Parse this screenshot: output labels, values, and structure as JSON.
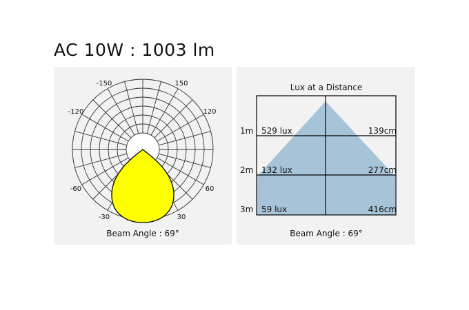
{
  "title": "AC 10W : 1003 lm",
  "polar": {
    "angle_labels": [
      {
        "text": "-150",
        "angle": -150
      },
      {
        "text": "150",
        "angle": 150
      },
      {
        "text": "-120",
        "angle": -120
      },
      {
        "text": "120",
        "angle": 120
      },
      {
        "text": "-60",
        "angle": -60
      },
      {
        "text": "60",
        "angle": 60
      },
      {
        "text": "-30",
        "angle": -30
      },
      {
        "text": "30",
        "angle": 30
      }
    ],
    "beam_fill": "#ffff00",
    "beam_caption": "Beam Angle : 69°"
  },
  "lux": {
    "title": "Lux at a Distance",
    "rows": [
      {
        "distance": "1m",
        "lux": "529 lux",
        "width": "139cm"
      },
      {
        "distance": "2m",
        "lux": "132 lux",
        "width": "277cm"
      },
      {
        "distance": "3m",
        "lux": "59 lux",
        "width": "416cm"
      }
    ],
    "cone_fill": "#a7c3d8",
    "beam_caption": "Beam Angle : 69°"
  }
}
